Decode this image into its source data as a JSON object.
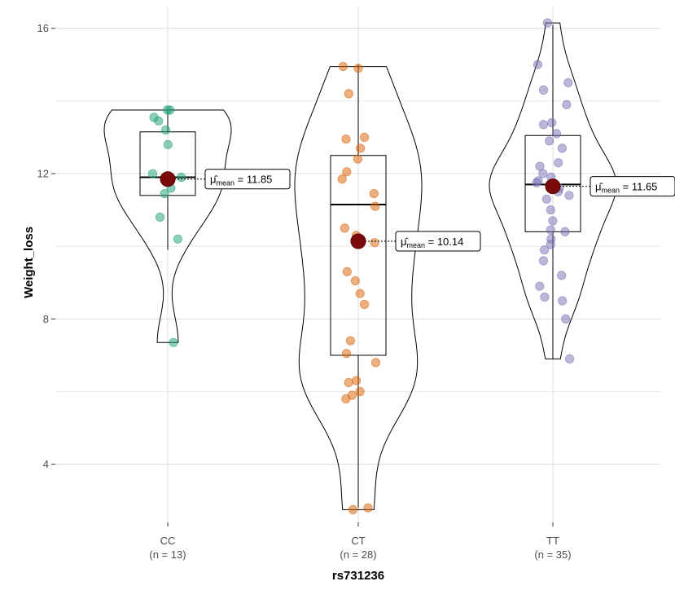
{
  "chart_data": {
    "type": "violin",
    "xlabel": "rs731236",
    "ylabel": "Weight_loss",
    "ylim": [
      2.4,
      16.6
    ],
    "yticks": [
      4,
      8,
      12,
      16
    ],
    "grid": true,
    "mean_symbol": "μ̂",
    "mean_subscript": "mean",
    "categories": [
      {
        "name": "CC",
        "n_label": "(n = 13)",
        "color": "#1b9e77",
        "box": {
          "q1": 11.4,
          "median": 11.9,
          "q3": 13.15,
          "whisker_low": 9.9,
          "whisker_high": 13.7
        },
        "mean": 11.85,
        "mean_label": "= 11.85",
        "points": [
          13.75,
          13.75,
          13.55,
          13.45,
          13.2,
          12.8,
          12.0,
          11.9,
          11.6,
          11.45,
          10.8,
          10.2,
          7.35
        ]
      },
      {
        "name": "CT",
        "n_label": "(n = 28)",
        "color": "#d95f02",
        "box": {
          "q1": 7.0,
          "median": 11.15,
          "q3": 12.5,
          "whisker_low": 2.8,
          "whisker_high": 15.0
        },
        "mean": 10.14,
        "mean_label": "= 10.14",
        "points": [
          14.95,
          14.9,
          14.2,
          13.0,
          12.95,
          12.7,
          12.4,
          12.05,
          11.85,
          11.45,
          11.1,
          10.5,
          10.3,
          10.1,
          9.3,
          9.05,
          8.7,
          8.4,
          7.4,
          7.05,
          6.8,
          6.3,
          6.25,
          6.0,
          5.9,
          5.8,
          2.8,
          2.75
        ]
      },
      {
        "name": "TT",
        "n_label": "(n = 35)",
        "color": "#7570b3",
        "box": {
          "q1": 10.4,
          "median": 11.7,
          "q3": 13.05,
          "whisker_low": 6.9,
          "whisker_high": 16.1
        },
        "mean": 11.65,
        "mean_label": "= 11.65",
        "points": [
          16.15,
          15.0,
          14.5,
          14.3,
          13.9,
          13.4,
          13.35,
          13.1,
          12.9,
          12.7,
          12.3,
          12.2,
          12.0,
          11.9,
          11.8,
          11.75,
          11.7,
          11.6,
          11.5,
          11.4,
          11.3,
          11.0,
          10.7,
          10.45,
          10.4,
          10.2,
          10.05,
          9.9,
          9.6,
          9.2,
          8.9,
          8.6,
          8.5,
          8.0,
          6.9
        ]
      }
    ]
  }
}
